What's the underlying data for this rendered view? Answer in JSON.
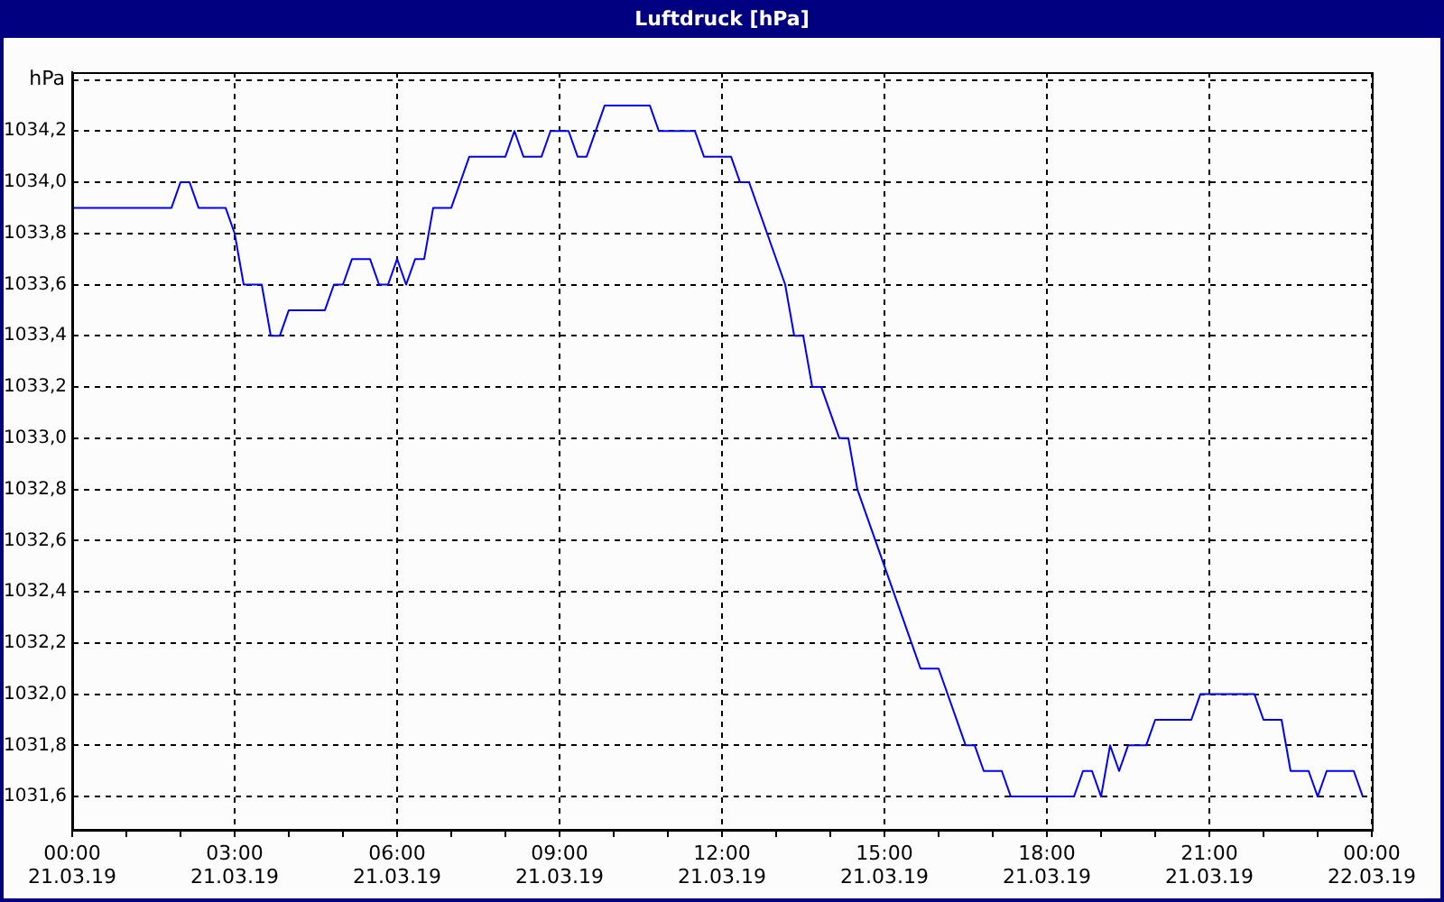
{
  "chart_data": {
    "type": "line",
    "title": "Luftdruck [hPa]",
    "ylabel": "hPa",
    "x": [
      "--03-21T00:00",
      "--03-21T01:50",
      "--03-21T02:00",
      "--03-21T02:10",
      "--03-21T02:20",
      "--03-21T02:50",
      "--03-21T03:00",
      "--03-21T03:10",
      "--03-21T03:30",
      "--03-21T03:40",
      "--03-21T03:50",
      "--03-21T04:00",
      "--03-21T04:40",
      "--03-21T04:50",
      "--03-21T05:00",
      "--03-21T05:10",
      "--03-21T05:30",
      "--03-21T05:40",
      "--03-21T05:50",
      "--03-21T06:00",
      "--03-21T06:10",
      "--03-21T06:20",
      "--03-21T06:30",
      "--03-21T06:40",
      "--03-21T07:00",
      "--03-21T07:20",
      "--03-21T08:00",
      "--03-21T08:10",
      "--03-21T08:20",
      "--03-21T08:40",
      "--03-21T08:50",
      "--03-21T09:10",
      "--03-21T09:20",
      "--03-21T09:30",
      "--03-21T09:50",
      "--03-21T10:40",
      "--03-21T10:50",
      "--03-21T11:30",
      "--03-21T11:40",
      "--03-21T12:10",
      "--03-21T12:20",
      "--03-21T12:30",
      "--03-21T12:50",
      "--03-21T13:10",
      "--03-21T13:20",
      "--03-21T13:30",
      "--03-21T13:40",
      "--03-21T13:50",
      "--03-21T14:10",
      "--03-21T14:20",
      "--03-21T14:30",
      "--03-21T14:50",
      "--03-21T15:10",
      "--03-21T15:30",
      "--03-21T15:40",
      "--03-21T16:00",
      "--03-21T16:30",
      "--03-21T16:40",
      "--03-21T16:50",
      "--03-21T17:10",
      "--03-21T17:20",
      "--03-21T18:30",
      "--03-21T18:40",
      "--03-21T18:50",
      "--03-21T19:00",
      "--03-21T19:10",
      "--03-21T19:20",
      "--03-21T19:30",
      "--03-21T19:50",
      "--03-21T20:00",
      "--03-21T20:40",
      "--03-21T20:50",
      "--03-21T21:50",
      "--03-21T22:00",
      "--03-21T22:20",
      "--03-21T22:30",
      "--03-21T22:50",
      "--03-21T23:00",
      "--03-21T23:10",
      "--03-21T23:40",
      "--03-21T23:50"
    ],
    "series": [
      {
        "color": "#0000ff",
        "values": [
          1033.9,
          1033.9,
          1034.0,
          1034.0,
          1033.9,
          1033.9,
          1033.8,
          1033.6,
          1033.6,
          1033.4,
          1033.4,
          1033.5,
          1033.5,
          1033.6,
          1033.6,
          1033.7,
          1033.7,
          1033.6,
          1033.6,
          1033.7,
          1033.6,
          1033.7,
          1033.7,
          1033.9,
          1033.9,
          1034.1,
          1034.1,
          1034.2,
          1034.1,
          1034.1,
          1034.2,
          1034.2,
          1034.1,
          1034.1,
          1034.3,
          1034.3,
          1034.2,
          1034.2,
          1034.1,
          1034.1,
          1034.0,
          1034.0,
          1033.8,
          1033.6,
          1033.4,
          1033.4,
          1033.2,
          1033.2,
          1033.0,
          1033.0,
          1032.8,
          1032.6,
          1032.4,
          1032.2,
          1032.1,
          1032.1,
          1031.8,
          1031.8,
          1031.7,
          1031.7,
          1031.6,
          1031.6,
          1031.7,
          1031.7,
          1031.6,
          1031.8,
          1031.7,
          1031.8,
          1031.8,
          1031.9,
          1031.9,
          1032.0,
          1032.0,
          1031.9,
          1031.9,
          1031.7,
          1031.7,
          1031.6,
          1031.7,
          1031.7,
          1031.6
        ]
      }
    ],
    "xlim": [
      "--03-21T00:00",
      "--03-22T00:00"
    ],
    "xticks": [
      {
        "value": "--03-21T00:00",
        "label": "00:00 21.03.19"
      },
      {
        "value": "--03-21T01:00",
        "label": null
      },
      {
        "value": "--03-21T02:00",
        "label": null
      },
      {
        "value": "--03-21T03:00",
        "label": "03:00 21.03.19"
      },
      {
        "value": "--03-21T04:00",
        "label": null
      },
      {
        "value": "--03-21T05:00",
        "label": null
      },
      {
        "value": "--03-21T06:00",
        "label": "06:00 21.03.19"
      },
      {
        "value": "--03-21T07:00",
        "label": null
      },
      {
        "value": "--03-21T08:00",
        "label": null
      },
      {
        "value": "--03-21T09:00",
        "label": "09:00 21.03.19"
      },
      {
        "value": "--03-21T10:00",
        "label": null
      },
      {
        "value": "--03-21T11:00",
        "label": null
      },
      {
        "value": "--03-21T12:00",
        "label": "12:00 21.03.19"
      },
      {
        "value": "--03-21T13:00",
        "label": null
      },
      {
        "value": "--03-21T14:00",
        "label": null
      },
      {
        "value": "--03-21T15:00",
        "label": "15:00 21.03.19"
      },
      {
        "value": "--03-21T16:00",
        "label": null
      },
      {
        "value": "--03-21T17:00",
        "label": null
      },
      {
        "value": "--03-21T18:00",
        "label": "18:00 21.03.19"
      },
      {
        "value": "--03-21T19:00",
        "label": null
      },
      {
        "value": "--03-21T20:00",
        "label": null
      },
      {
        "value": "--03-21T21:00",
        "label": "21:00 21.03.19"
      },
      {
        "value": "--03-21T22:00",
        "label": null
      },
      {
        "value": "--03-21T23:00",
        "label": null
      },
      {
        "value": "--03-22T00:00",
        "label": "00:00 22.03.19"
      }
    ],
    "ylim": [
      1031.47,
      1034.43
    ],
    "yticks": [
      {
        "value": 1031.6,
        "label": "1031,6"
      },
      {
        "value": 1031.8,
        "label": "1031,8"
      },
      {
        "value": 1032.0,
        "label": "1032,0"
      },
      {
        "value": 1032.2,
        "label": "1032,2"
      },
      {
        "value": 1032.4,
        "label": "1032,4"
      },
      {
        "value": 1032.6,
        "label": "1032,6"
      },
      {
        "value": 1032.8,
        "label": "1032,8"
      },
      {
        "value": 1033.0,
        "label": "1033,0"
      },
      {
        "value": 1033.2,
        "label": "1033,2"
      },
      {
        "value": 1033.4,
        "label": "1033,4"
      },
      {
        "value": 1033.6,
        "label": "1033,6"
      },
      {
        "value": 1033.8,
        "label": "1033,8"
      },
      {
        "value": 1034.0,
        "label": "1034,0"
      },
      {
        "value": 1034.2,
        "label": "1034,2"
      },
      {
        "value": 1034.4,
        "label": null
      }
    ],
    "grid": true,
    "legend": false,
    "marker": "none",
    "line_style": "solid"
  }
}
